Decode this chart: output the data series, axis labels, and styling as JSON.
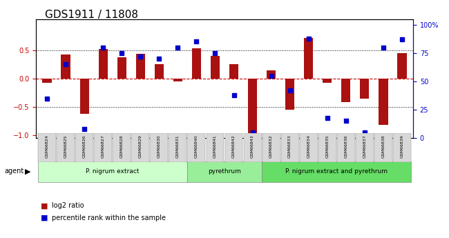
{
  "title": "GDS1911 / 11808",
  "samples": [
    "GSM66824",
    "GSM66825",
    "GSM66826",
    "GSM66827",
    "GSM66828",
    "GSM66829",
    "GSM66830",
    "GSM66831",
    "GSM66840",
    "GSM66841",
    "GSM66842",
    "GSM66843",
    "GSM66832",
    "GSM66833",
    "GSM66834",
    "GSM66835",
    "GSM66836",
    "GSM66837",
    "GSM66838",
    "GSM66839"
  ],
  "log2_ratio": [
    -0.07,
    0.42,
    -0.62,
    0.52,
    0.37,
    0.44,
    0.25,
    -0.05,
    0.53,
    0.4,
    0.25,
    -1.0,
    0.15,
    -0.55,
    0.72,
    -0.08,
    -0.42,
    -0.35,
    -0.82,
    0.45
  ],
  "percentile": [
    35,
    65,
    8,
    80,
    75,
    72,
    70,
    80,
    85,
    75,
    38,
    5,
    55,
    42,
    88,
    18,
    15,
    5,
    80,
    87
  ],
  "groups": [
    {
      "label": "P. nigrum extract",
      "start": 0,
      "end": 8,
      "color": "#ccffcc"
    },
    {
      "label": "pyrethrum",
      "start": 8,
      "end": 12,
      "color": "#99ee99"
    },
    {
      "label": "P. nigrum extract and pyrethrum",
      "start": 12,
      "end": 20,
      "color": "#66dd66"
    }
  ],
  "bar_color": "#aa1111",
  "dot_color": "#0000cc",
  "ylabel_left": "",
  "ylabel_right": "",
  "yticks_left": [
    -1,
    -0.5,
    0,
    0.5
  ],
  "yticks_right": [
    0,
    25,
    50,
    75,
    100
  ],
  "ylim_left": [
    -1.05,
    1.05
  ],
  "ylim_right": [
    0,
    105
  ],
  "hline_y": 0,
  "dotted_lines": [
    -0.5,
    0.5
  ],
  "background_color": "#ffffff",
  "grid_color": "#cccccc"
}
